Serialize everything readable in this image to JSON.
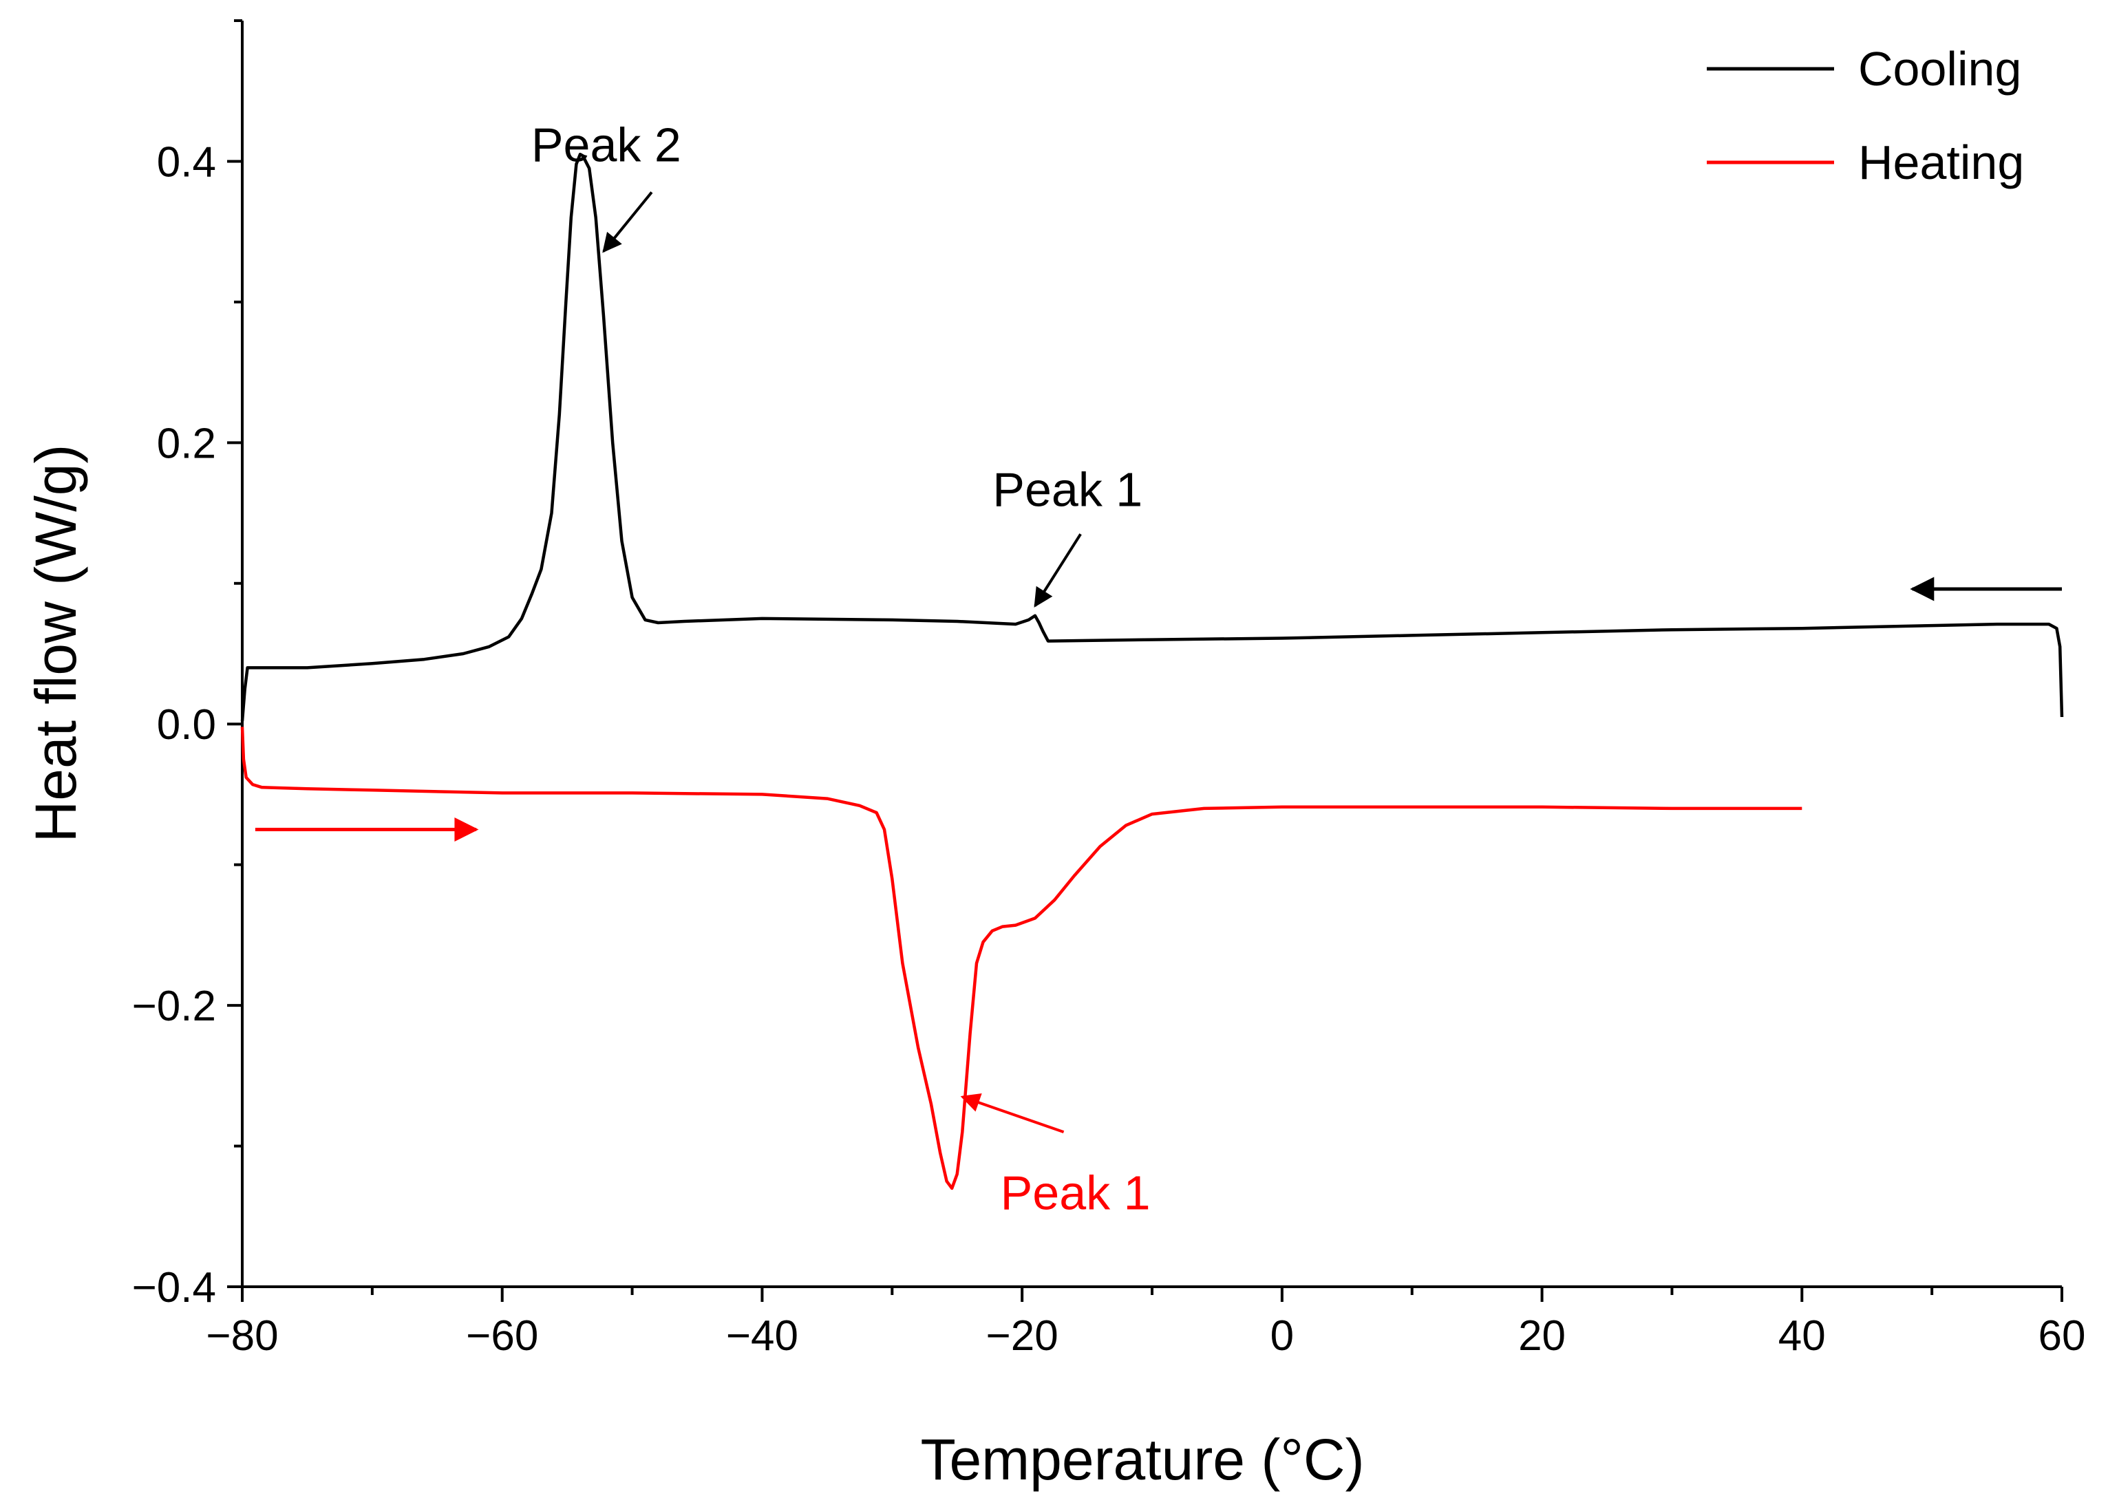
{
  "chart_data": {
    "type": "line",
    "xlabel": "Temperature (°C)",
    "ylabel": "Heat flow (W/g)",
    "xlim": [
      -80,
      60
    ],
    "ylim": [
      -0.4,
      0.5
    ],
    "xticks": [
      -80,
      -60,
      -40,
      -20,
      0,
      20,
      40,
      60
    ],
    "xtick_labels": [
      "−80",
      "−60",
      "−40",
      "−20",
      "0",
      "20",
      "40",
      "60"
    ],
    "yticks": [
      -0.4,
      -0.2,
      0.0,
      0.2,
      0.4
    ],
    "ytick_labels": [
      "−0.4",
      "−0.2",
      "0.0",
      "0.2",
      "0.4"
    ],
    "grid": false,
    "legend_position": "top-right",
    "series": [
      {
        "name": "Cooling",
        "color": "#000000",
        "x": [
          60.0,
          59.85,
          59.6,
          59.0,
          55.0,
          50.0,
          40.0,
          30.0,
          20.0,
          10.0,
          0.0,
          -10.0,
          -18.0,
          -18.4,
          -18.7,
          -19.0,
          -19.5,
          -20.5,
          -25.0,
          -30.0,
          -40.0,
          -46.0,
          -48.0,
          -49.0,
          -50.0,
          -50.8,
          -51.5,
          -52.2,
          -52.8,
          -53.3,
          -53.8,
          -54.0,
          -54.3,
          -54.7,
          -55.1,
          -55.6,
          -56.2,
          -57.0,
          -57.7,
          -58.5,
          -59.5,
          -61.0,
          -63.0,
          -66.0,
          -70.0,
          -75.0,
          -79.6,
          -79.8,
          -80.0
        ],
        "y": [
          0.005,
          0.055,
          0.068,
          0.071,
          0.071,
          0.07,
          0.068,
          0.067,
          0.065,
          0.063,
          0.061,
          0.06,
          0.059,
          0.066,
          0.072,
          0.077,
          0.074,
          0.071,
          0.073,
          0.074,
          0.075,
          0.073,
          0.072,
          0.074,
          0.09,
          0.13,
          0.2,
          0.29,
          0.36,
          0.395,
          0.404,
          0.405,
          0.398,
          0.36,
          0.3,
          0.22,
          0.15,
          0.11,
          0.093,
          0.075,
          0.062,
          0.055,
          0.05,
          0.046,
          0.043,
          0.04,
          0.04,
          0.025,
          0.002
        ]
      },
      {
        "name": "Heating",
        "color": "#ff0000",
        "x": [
          -80.0,
          -79.9,
          -79.7,
          -79.2,
          -78.5,
          -75.0,
          -70.0,
          -60.0,
          -50.0,
          -40.0,
          -35.0,
          -32.5,
          -31.2,
          -30.6,
          -30.0,
          -29.2,
          -28.0,
          -27.0,
          -26.3,
          -25.8,
          -25.4,
          -25.0,
          -24.6,
          -24.0,
          -23.5,
          -23.0,
          -22.3,
          -21.5,
          -20.5,
          -19.0,
          -17.5,
          -16.0,
          -14.0,
          -12.0,
          -10.0,
          -8.0,
          -6.0,
          0.0,
          10.0,
          20.0,
          30.0,
          40.0
        ],
        "y": [
          -0.002,
          -0.025,
          -0.038,
          -0.043,
          -0.045,
          -0.046,
          -0.047,
          -0.049,
          -0.049,
          -0.05,
          -0.053,
          -0.058,
          -0.063,
          -0.075,
          -0.11,
          -0.17,
          -0.23,
          -0.27,
          -0.305,
          -0.325,
          -0.33,
          -0.32,
          -0.29,
          -0.22,
          -0.17,
          -0.155,
          -0.147,
          -0.144,
          -0.143,
          -0.138,
          -0.125,
          -0.108,
          -0.087,
          -0.072,
          -0.064,
          -0.062,
          -0.06,
          -0.059,
          -0.059,
          -0.059,
          -0.06,
          -0.06
        ]
      }
    ],
    "annotations": [
      {
        "text": "Peak 2",
        "color": "#000000",
        "label_at": [
          -52,
          0.4
        ],
        "arrow_from": [
          -48.5,
          0.378
        ],
        "arrow_to": [
          -52.2,
          0.336
        ]
      },
      {
        "text": "Peak 1",
        "color": "#000000",
        "label_at": [
          -16.5,
          0.155
        ],
        "arrow_from": [
          -15.5,
          0.135
        ],
        "arrow_to": [
          -19.0,
          0.084
        ]
      },
      {
        "text": "Peak 1",
        "color": "#ff0000",
        "label_at": [
          -15.9,
          -0.345
        ],
        "arrow_from": [
          -16.8,
          -0.29
        ],
        "arrow_to": [
          -24.6,
          -0.265
        ]
      }
    ],
    "direction_arrows": [
      {
        "color": "#000000",
        "from": [
          60.0,
          0.096
        ],
        "to": [
          48.5,
          0.096
        ]
      },
      {
        "color": "#ff0000",
        "from": [
          -79.0,
          -0.075
        ],
        "to": [
          -62.0,
          -0.075
        ]
      }
    ]
  }
}
